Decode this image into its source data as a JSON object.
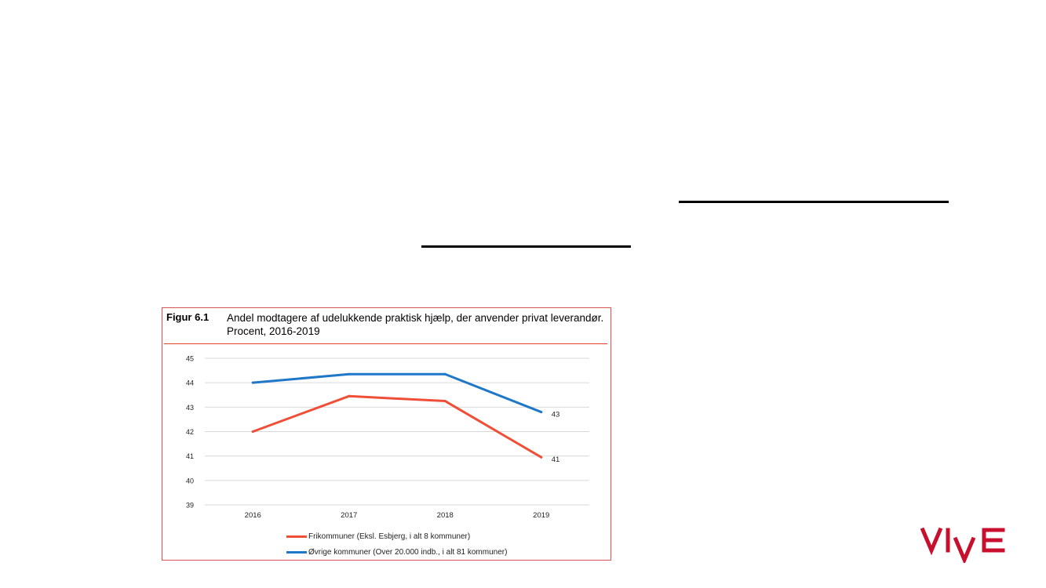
{
  "figure": {
    "label": "Figur 6.1",
    "title": "Andel modtagere af udelukkende praktisk hjælp, der anvender privat leverandør. Procent, 2016-2019"
  },
  "logo": {
    "text": "VIVE",
    "color": "#c8102e"
  },
  "chart_data": {
    "type": "line",
    "categories": [
      "2016",
      "2017",
      "2018",
      "2019"
    ],
    "ylim": [
      39,
      45
    ],
    "yticks": [
      39,
      40,
      41,
      42,
      43,
      44,
      45
    ],
    "grid": true,
    "legend_position": "bottom",
    "series": [
      {
        "name": "Frikommuner (Eksl. Esbjerg, i alt 8 kommuner)",
        "values": [
          42.0,
          43.45,
          43.25,
          40.95
        ],
        "color": "#f04e37",
        "end_label": "41"
      },
      {
        "name": "Øvrige kommuner (Over 20.000 indb., i alt 81 kommuner)",
        "values": [
          44.0,
          44.35,
          44.35,
          42.8
        ],
        "color": "#1f77c8",
        "end_label": "43"
      }
    ]
  }
}
